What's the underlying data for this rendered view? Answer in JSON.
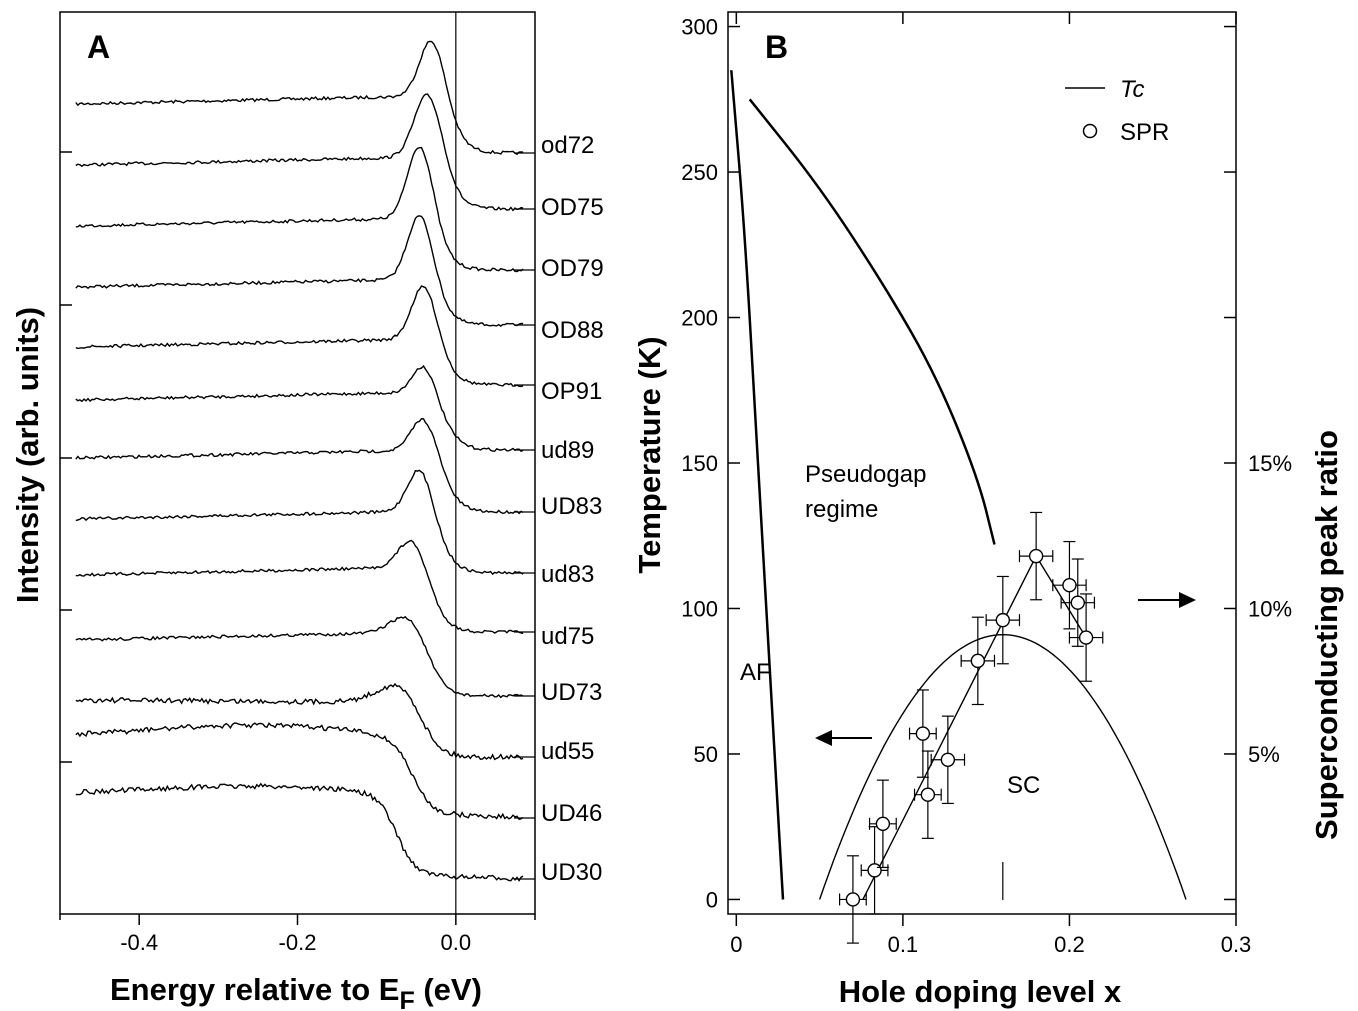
{
  "chart_data": [
    {
      "panel": "A",
      "type": "line",
      "xlabel": "Energy relative to E",
      "xlabel_sub": "F",
      "xlabel_unit": "(eV)",
      "ylabel": "Intensity (arb. units)",
      "xlim": [
        -0.5,
        0.1
      ],
      "xticks": [
        "-0.4",
        "-0.2",
        "0.0"
      ],
      "xtick_values": [
        -0.4,
        -0.2,
        0.0
      ],
      "vertical_line_at": 0.0,
      "series": [
        {
          "name": "od72",
          "baseline": 0.0,
          "peak_x": -0.03,
          "peak_h": 1.3,
          "width": 0.022,
          "bg": 0.0
        },
        {
          "name": "OD75",
          "baseline": 0.0,
          "peak_x": -0.035,
          "peak_h": 1.4,
          "width": 0.024,
          "bg": 0.0
        },
        {
          "name": "OD79",
          "baseline": 0.0,
          "peak_x": -0.045,
          "peak_h": 1.5,
          "width": 0.022,
          "bg": 0.0
        },
        {
          "name": "OD88",
          "baseline": 0.0,
          "peak_x": -0.045,
          "peak_h": 1.3,
          "width": 0.022,
          "bg": 0.0
        },
        {
          "name": "OP91",
          "baseline": 0.0,
          "peak_x": -0.04,
          "peak_h": 1.1,
          "width": 0.022,
          "bg": 0.0
        },
        {
          "name": "ud89",
          "baseline": 0.0,
          "peak_x": -0.04,
          "peak_h": 1.1,
          "width": 0.02,
          "bg": 0.0
        },
        {
          "name": "UD83",
          "baseline": 0.0,
          "peak_x": -0.04,
          "peak_h": 1.0,
          "width": 0.022,
          "bg": 0.0
        },
        {
          "name": "ud83",
          "baseline": 0.0,
          "peak_x": -0.045,
          "peak_h": 0.9,
          "width": 0.022,
          "bg": 0.0
        },
        {
          "name": "ud75",
          "baseline": 0.0,
          "peak_x": -0.055,
          "peak_h": 0.8,
          "width": 0.024,
          "bg": 0.0
        },
        {
          "name": "UD73",
          "baseline": 0.0,
          "peak_x": -0.06,
          "peak_h": 0.4,
          "width": 0.03,
          "bg": 0.0
        },
        {
          "name": "ud55",
          "baseline": 0.0,
          "peak_x": -0.07,
          "peak_h": 0.2,
          "width": 0.04,
          "bg": 0.0
        },
        {
          "name": "UD46",
          "baseline": 0.0,
          "peak_x": -0.08,
          "peak_h": 0.05,
          "width": 0.04,
          "bg": 0.0
        },
        {
          "name": "UD30",
          "baseline": 0.0,
          "peak_x": -0.1,
          "peak_h": 0.0,
          "width": 0.04,
          "bg": 0.0
        }
      ]
    },
    {
      "panel": "B",
      "type": "scatter",
      "xlabel": "Hole doping level x",
      "ylabel": "Temperature (K)",
      "y2label": "Superconducting peak ratio",
      "xlim": [
        -0.005,
        0.3
      ],
      "ylim": [
        -5,
        305
      ],
      "xticks": [
        "0",
        "0.1",
        "0.2",
        "0.3"
      ],
      "xtick_values": [
        0,
        0.1,
        0.2,
        0.3
      ],
      "yticks": [
        "0",
        "50",
        "100",
        "150",
        "200",
        "250",
        "300"
      ],
      "ytick_values": [
        0,
        50,
        100,
        150,
        200,
        250,
        300
      ],
      "y2ticks": [
        "5%",
        "10%",
        "15%"
      ],
      "y2tick_values": [
        50,
        100,
        150
      ],
      "legend": [
        {
          "label": "Tc",
          "marker": "line"
        },
        {
          "label": "SPR",
          "marker": "circle"
        }
      ],
      "region_labels": {
        "af": "AF",
        "pseudogap_1": "Pseudogap",
        "pseudogap_2": "regime",
        "sc": "SC"
      },
      "spr_points": [
        {
          "x": 0.07,
          "y": 0,
          "xerr": 0.008,
          "yerr": 15
        },
        {
          "x": 0.083,
          "y": 10,
          "xerr": 0.008,
          "yerr": 15
        },
        {
          "x": 0.088,
          "y": 26,
          "xerr": 0.008,
          "yerr": 15
        },
        {
          "x": 0.112,
          "y": 57,
          "xerr": 0.008,
          "yerr": 15
        },
        {
          "x": 0.115,
          "y": 36,
          "xerr": 0.008,
          "yerr": 15
        },
        {
          "x": 0.127,
          "y": 48,
          "xerr": 0.01,
          "yerr": 15
        },
        {
          "x": 0.145,
          "y": 82,
          "xerr": 0.01,
          "yerr": 15
        },
        {
          "x": 0.16,
          "y": 96,
          "xerr": 0.01,
          "yerr": 15
        },
        {
          "x": 0.18,
          "y": 118,
          "xerr": 0.01,
          "yerr": 15
        },
        {
          "x": 0.2,
          "y": 108,
          "xerr": 0.01,
          "yerr": 15
        },
        {
          "x": 0.205,
          "y": 102,
          "xerr": 0.01,
          "yerr": 15
        },
        {
          "x": 0.21,
          "y": 90,
          "xerr": 0.01,
          "yerr": 15
        }
      ],
      "tc_dome": {
        "x_start": 0.05,
        "x_end": 0.27,
        "peak_x": 0.16,
        "peak_y": 91
      },
      "af_boundary": [
        [
          -0.003,
          285
        ],
        [
          0.005,
          230
        ],
        [
          0.012,
          160
        ],
        [
          0.018,
          100
        ],
        [
          0.024,
          40
        ],
        [
          0.028,
          0
        ]
      ],
      "pseudogap_line": [
        [
          0.008,
          275
        ],
        [
          0.05,
          245
        ],
        [
          0.09,
          210
        ],
        [
          0.12,
          180
        ],
        [
          0.145,
          145
        ],
        [
          0.155,
          122
        ]
      ],
      "spr_fit_line": [
        [
          0.076,
          0
        ],
        [
          0.18,
          118
        ],
        [
          0.21,
          90
        ]
      ]
    }
  ]
}
